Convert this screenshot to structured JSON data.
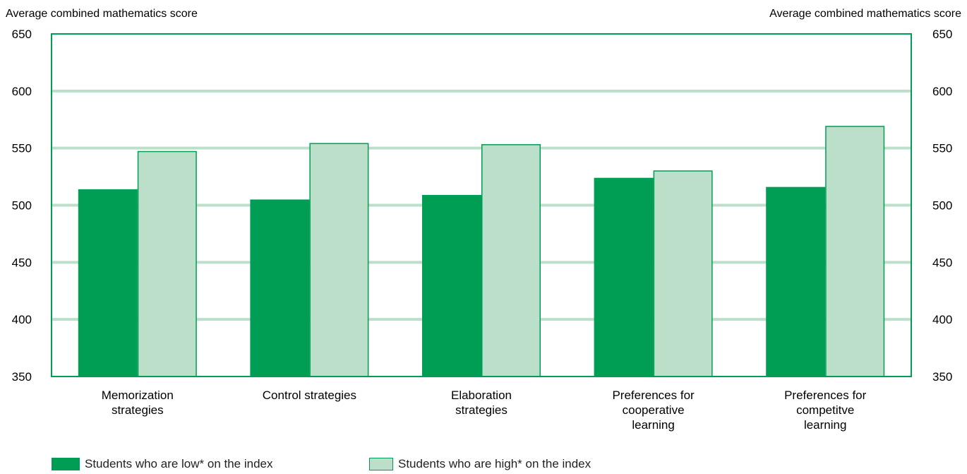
{
  "colors": {
    "low": "#009e55",
    "high": "#bcdfc9",
    "frame": "#009e55",
    "grid": "#bcdfc9"
  },
  "chart_data": {
    "type": "bar",
    "categories": [
      [
        "Memorization",
        "strategies"
      ],
      [
        "Control strategies"
      ],
      [
        "Elaboration",
        "strategies"
      ],
      [
        "Preferences for",
        "cooperative",
        "learning"
      ],
      [
        "Preferences for",
        "competitve",
        "learning"
      ]
    ],
    "series": [
      {
        "name": "Students who are low* on the index",
        "values": [
          514,
          505,
          509,
          524,
          516
        ]
      },
      {
        "name": "Students who are high* on the index",
        "values": [
          547,
          554,
          553,
          530,
          569
        ]
      }
    ],
    "ylabel_left": "Average combined mathematics score",
    "ylabel_right": "Average combined mathematics score",
    "ylim": [
      350,
      650
    ],
    "yticks": [
      350,
      400,
      450,
      500,
      550,
      600,
      650
    ],
    "grid": true,
    "legend_position": "bottom"
  }
}
